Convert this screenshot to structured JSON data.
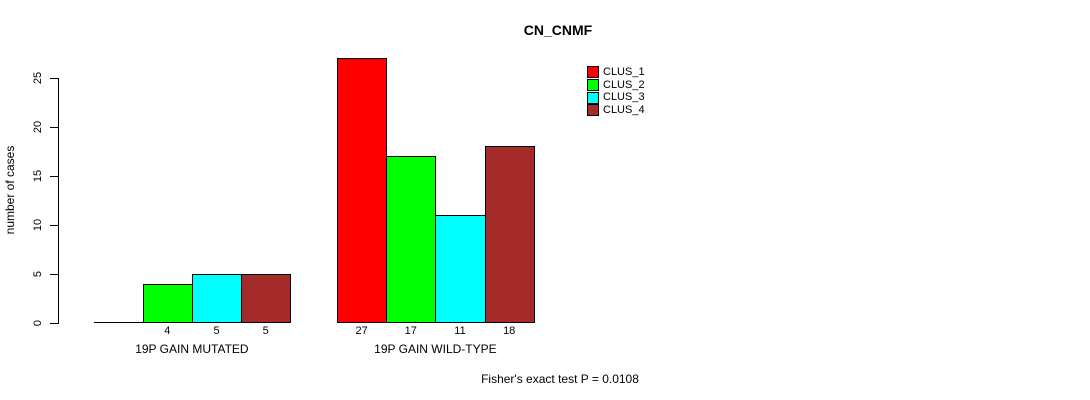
{
  "title": "CN_CNMF",
  "y_axis_label": "number of cases",
  "footer": "Fisher's exact test P = 0.0108",
  "chart_data": {
    "type": "bar",
    "title": "CN_CNMF",
    "ylabel": "number of cases",
    "xlabel": "",
    "categories": [
      "19P GAIN MUTATED",
      "19P GAIN WILD-TYPE"
    ],
    "series": [
      {
        "name": "CLUS_1",
        "color": "#ff0000",
        "values": [
          0,
          27
        ]
      },
      {
        "name": "CLUS_2",
        "color": "#00ff00",
        "values": [
          4,
          17
        ]
      },
      {
        "name": "CLUS_3",
        "color": "#00ffff",
        "values": [
          5,
          11
        ]
      },
      {
        "name": "CLUS_4",
        "color": "#a52a2a",
        "values": [
          5,
          18
        ]
      }
    ],
    "yticks": [
      0,
      5,
      10,
      15,
      20,
      25
    ],
    "ylim": [
      0,
      27.5
    ],
    "grid": false,
    "legend_position": "top-right",
    "bar_value_labels_shown": true,
    "zero_value_labels_hidden": true,
    "annotation": "Fisher's exact test P = 0.0108"
  }
}
